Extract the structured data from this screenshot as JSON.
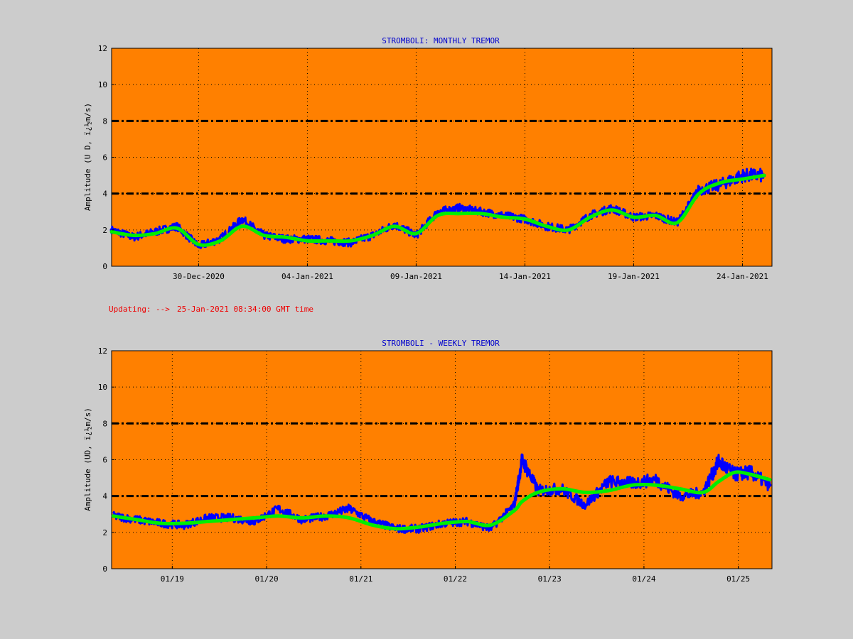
{
  "status_line": {
    "label": "Updating:",
    "arrow": "-->",
    "timestamp": "25-Jan-2021 08:34:00 GMT time"
  },
  "colors": {
    "page_background": "#cccccc",
    "plot_background": "#ff8000",
    "raw_series": "#0000ff",
    "smoothed_series": "#00ee00",
    "threshold_lines": "#000000",
    "title_text": "#0000cc",
    "status_text": "#ee0000"
  },
  "chart_data": [
    {
      "type": "line",
      "title": "STROMBOLI: MONTHLY TREMOR",
      "ylabel": "Amplitude   (U D,  ï¿½m/s)",
      "xlabel": "",
      "ylim": [
        0,
        12
      ],
      "xlim": [
        "2020-12-26",
        "2021-01-25T08:34"
      ],
      "y_ticks": [
        "0",
        "2",
        "4",
        "6",
        "8",
        "10",
        "12"
      ],
      "x_ticks": [
        {
          "date": "2020-12-30",
          "label": "30-Dec-2020"
        },
        {
          "date": "2021-01-04",
          "label": "04-Jan-2021"
        },
        {
          "date": "2021-01-09",
          "label": "09-Jan-2021"
        },
        {
          "date": "2021-01-14",
          "label": "14-Jan-2021"
        },
        {
          "date": "2021-01-19",
          "label": "19-Jan-2021"
        },
        {
          "date": "2021-01-24",
          "label": "24-Jan-2021"
        }
      ],
      "thresholds": [
        4,
        8
      ],
      "grid": true,
      "series": [
        {
          "role": "raw",
          "x": [
            "2020-12-26",
            "2020-12-27",
            "2020-12-28",
            "2020-12-29",
            "2020-12-30",
            "2020-12-31",
            "2021-01-01",
            "2021-01-02",
            "2021-01-03",
            "2021-01-04",
            "2021-01-05",
            "2021-01-06",
            "2021-01-07",
            "2021-01-08",
            "2021-01-09",
            "2021-01-10",
            "2021-01-11",
            "2021-01-12",
            "2021-01-13",
            "2021-01-14",
            "2021-01-15",
            "2021-01-16",
            "2021-01-17",
            "2021-01-18",
            "2021-01-19",
            "2021-01-20",
            "2021-01-21",
            "2021-01-22",
            "2021-01-23",
            "2021-01-24",
            "2021-01-25"
          ],
          "values": [
            2.0,
            1.6,
            1.9,
            2.2,
            1.1,
            1.5,
            2.6,
            1.7,
            1.5,
            1.5,
            1.4,
            1.3,
            1.7,
            2.3,
            1.7,
            3.0,
            3.2,
            3.0,
            2.8,
            2.6,
            2.2,
            2.0,
            2.8,
            3.2,
            2.7,
            2.8,
            2.4,
            4.2,
            4.5,
            5.0,
            5.0
          ]
        },
        {
          "role": "smoothed",
          "x": [
            "2020-12-26",
            "2020-12-27",
            "2020-12-28",
            "2020-12-29",
            "2020-12-30",
            "2020-12-31",
            "2021-01-01",
            "2021-01-02",
            "2021-01-03",
            "2021-01-04",
            "2021-01-05",
            "2021-01-06",
            "2021-01-07",
            "2021-01-08",
            "2021-01-09",
            "2021-01-10",
            "2021-01-11",
            "2021-01-12",
            "2021-01-13",
            "2021-01-14",
            "2021-01-15",
            "2021-01-16",
            "2021-01-17",
            "2021-01-18",
            "2021-01-19",
            "2021-01-20",
            "2021-01-21",
            "2021-01-22",
            "2021-01-23",
            "2021-01-24",
            "2021-01-25"
          ],
          "values": [
            1.9,
            1.7,
            1.8,
            2.1,
            1.2,
            1.4,
            2.2,
            1.7,
            1.6,
            1.4,
            1.4,
            1.4,
            1.7,
            2.2,
            1.8,
            2.8,
            2.9,
            2.9,
            2.7,
            2.6,
            2.2,
            2.0,
            2.7,
            3.1,
            2.7,
            2.8,
            2.4,
            4.0,
            4.6,
            4.8,
            5.0
          ]
        }
      ]
    },
    {
      "type": "line",
      "title": "STROMBOLI - WEEKLY TREMOR",
      "ylabel": "Amplitude (UD, ï¿½m/s)",
      "xlabel": "",
      "ylim": [
        0,
        12
      ],
      "xlim": [
        "2021-01-18T08:34",
        "2021-01-25T08:34"
      ],
      "y_ticks": [
        "0",
        "2",
        "4",
        "6",
        "8",
        "10",
        "12"
      ],
      "x_ticks": [
        {
          "date": "2021-01-19",
          "label": "01/19"
        },
        {
          "date": "2021-01-20",
          "label": "01/20"
        },
        {
          "date": "2021-01-21",
          "label": "01/21"
        },
        {
          "date": "2021-01-22",
          "label": "01/22"
        },
        {
          "date": "2021-01-23",
          "label": "01/23"
        },
        {
          "date": "2021-01-24",
          "label": "01/24"
        },
        {
          "date": "2021-01-25",
          "label": "01/25"
        }
      ],
      "thresholds": [
        4,
        8
      ],
      "grid": true,
      "series": [
        {
          "role": "raw",
          "x": [
            "2021-01-18T09:00",
            "2021-01-18T15:00",
            "2021-01-18T21:00",
            "2021-01-19T03:00",
            "2021-01-19T09:00",
            "2021-01-19T15:00",
            "2021-01-19T21:00",
            "2021-01-20T03:00",
            "2021-01-20T09:00",
            "2021-01-20T15:00",
            "2021-01-20T21:00",
            "2021-01-21T03:00",
            "2021-01-21T09:00",
            "2021-01-21T15:00",
            "2021-01-21T21:00",
            "2021-01-22T03:00",
            "2021-01-22T09:00",
            "2021-01-22T15:00",
            "2021-01-22T17:00",
            "2021-01-22T21:00",
            "2021-01-23T03:00",
            "2021-01-23T09:00",
            "2021-01-23T15:00",
            "2021-01-23T21:00",
            "2021-01-24T03:00",
            "2021-01-24T09:00",
            "2021-01-24T15:00",
            "2021-01-24T19:00",
            "2021-01-24T23:00",
            "2021-01-25T03:00",
            "2021-01-25T08:00"
          ],
          "values": [
            2.9,
            2.7,
            2.5,
            2.4,
            2.8,
            2.8,
            2.6,
            3.3,
            2.7,
            2.9,
            3.3,
            2.6,
            2.2,
            2.2,
            2.5,
            2.6,
            2.2,
            3.5,
            6.0,
            4.3,
            4.4,
            3.5,
            4.8,
            4.7,
            4.9,
            4.0,
            4.2,
            5.9,
            5.2,
            5.3,
            4.6
          ]
        },
        {
          "role": "smoothed",
          "x": [
            "2021-01-18T09:00",
            "2021-01-18T15:00",
            "2021-01-18T21:00",
            "2021-01-19T03:00",
            "2021-01-19T09:00",
            "2021-01-19T15:00",
            "2021-01-19T21:00",
            "2021-01-20T03:00",
            "2021-01-20T09:00",
            "2021-01-20T15:00",
            "2021-01-20T21:00",
            "2021-01-21T03:00",
            "2021-01-21T09:00",
            "2021-01-21T15:00",
            "2021-01-21T21:00",
            "2021-01-22T03:00",
            "2021-01-22T09:00",
            "2021-01-22T15:00",
            "2021-01-22T17:00",
            "2021-01-22T21:00",
            "2021-01-23T03:00",
            "2021-01-23T09:00",
            "2021-01-23T15:00",
            "2021-01-23T21:00",
            "2021-01-24T03:00",
            "2021-01-24T09:00",
            "2021-01-24T15:00",
            "2021-01-24T19:00",
            "2021-01-24T23:00",
            "2021-01-25T03:00",
            "2021-01-25T08:00"
          ],
          "values": [
            2.9,
            2.7,
            2.5,
            2.5,
            2.6,
            2.7,
            2.8,
            2.9,
            2.8,
            2.9,
            2.8,
            2.4,
            2.2,
            2.3,
            2.5,
            2.6,
            2.4,
            3.2,
            3.7,
            4.2,
            4.4,
            4.2,
            4.3,
            4.6,
            4.6,
            4.4,
            4.2,
            4.8,
            5.3,
            5.2,
            4.9
          ]
        }
      ]
    }
  ]
}
